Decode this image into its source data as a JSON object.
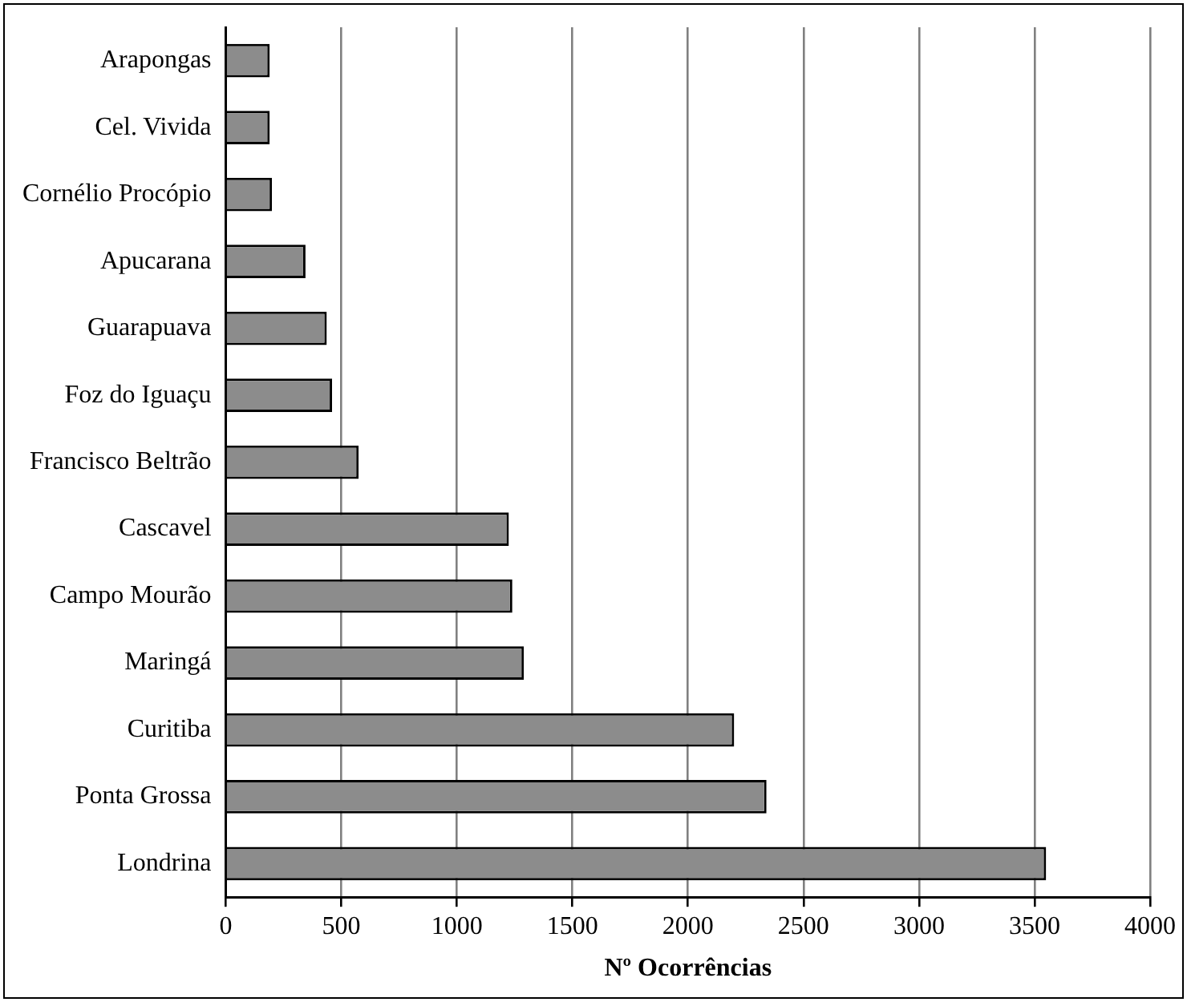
{
  "chart_data": {
    "type": "bar",
    "orientation": "horizontal",
    "xlabel": "Nº Ocorrências",
    "categories": [
      "Arapongas",
      "Cel. Vivida",
      "Cornélio Procópio",
      "Apucarana",
      "Guarapuava",
      "Foz do Iguaçu",
      "Francisco Beltrão",
      "Cascavel",
      "Campo Mourão",
      "Maringá",
      "Curitiba",
      "Ponta Grossa",
      "Londrina"
    ],
    "values": [
      190,
      190,
      200,
      345,
      437,
      460,
      575,
      1225,
      1240,
      1290,
      2200,
      2340,
      3550
    ],
    "color": "#8c8c8c",
    "xlim": [
      0,
      4000
    ],
    "xticks": [
      0,
      500,
      1000,
      1500,
      2000,
      2500,
      3000,
      3500,
      4000
    ],
    "grid": "x",
    "legend": false
  }
}
